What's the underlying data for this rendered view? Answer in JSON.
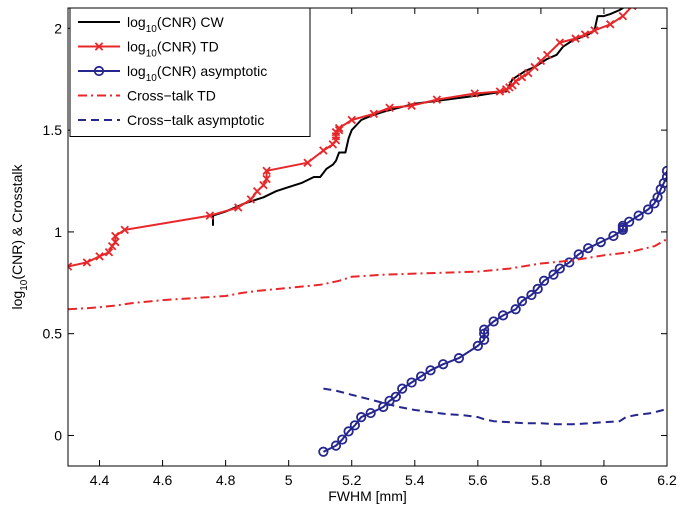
{
  "chart_data": {
    "type": "line",
    "xlabel": "FWHM [mm]",
    "ylabel": {
      "main": "log",
      "sub": "10",
      "rest": "(CNR) & Crosstalk"
    },
    "xlim": [
      4.3,
      6.2
    ],
    "ylim": [
      -0.15,
      2.1
    ],
    "xticks": [
      "4.4",
      "4.6",
      "4.8",
      "5",
      "5.2",
      "5.4",
      "5.6",
      "5.8",
      "6",
      "6.2"
    ],
    "yticks": [
      "0",
      "0.5",
      "1",
      "1.5",
      "2"
    ],
    "grid": false,
    "legend_position": "top-left",
    "series": [
      {
        "key": "cnr_cw",
        "legend": {
          "pre": "log",
          "sub": "10",
          "post": "(CNR) CW"
        },
        "color": "#000000",
        "style": "solid",
        "marker": "none",
        "x": [
          4.76,
          4.76,
          4.8,
          4.86,
          4.92,
          4.96,
          5.0,
          5.04,
          5.08,
          5.1,
          5.12,
          5.14,
          5.15,
          5.16,
          5.18,
          5.19,
          5.2,
          5.23,
          5.26,
          5.3,
          5.35,
          5.4,
          5.5,
          5.6,
          5.68,
          5.69,
          5.71,
          5.73,
          5.75,
          5.78,
          5.82,
          5.85,
          5.87,
          5.9,
          5.95,
          5.97,
          5.98,
          6.0,
          6.02,
          6.05,
          6.08
        ],
        "y": [
          1.03,
          1.08,
          1.1,
          1.14,
          1.17,
          1.2,
          1.22,
          1.24,
          1.27,
          1.27,
          1.31,
          1.33,
          1.35,
          1.39,
          1.39,
          1.46,
          1.5,
          1.55,
          1.57,
          1.59,
          1.61,
          1.63,
          1.65,
          1.67,
          1.69,
          1.69,
          1.75,
          1.77,
          1.79,
          1.81,
          1.85,
          1.87,
          1.91,
          1.94,
          1.97,
          1.99,
          2.06,
          2.06,
          2.07,
          2.09,
          2.12
        ]
      },
      {
        "key": "cnr_td",
        "legend": {
          "pre": "log",
          "sub": "10",
          "post": "(CNR) TD"
        },
        "color": "#e8272a",
        "style": "solid",
        "marker": "x",
        "x": [
          4.3,
          4.36,
          4.4,
          4.43,
          4.44,
          4.45,
          4.45,
          4.48,
          4.75,
          4.84,
          4.88,
          4.9,
          4.92,
          4.93,
          4.93,
          5.06,
          5.11,
          5.14,
          5.15,
          5.15,
          5.15,
          5.16,
          5.16,
          5.2,
          5.27,
          5.32,
          5.39,
          5.47,
          5.59,
          5.67,
          5.69,
          5.7,
          5.71,
          5.72,
          5.74,
          5.76,
          5.78,
          5.8,
          5.82,
          5.86,
          5.91,
          5.94,
          5.97,
          6.02,
          6.06,
          6.09
        ],
        "y": [
          0.83,
          0.85,
          0.88,
          0.9,
          0.93,
          0.95,
          0.98,
          1.01,
          1.08,
          1.12,
          1.16,
          1.2,
          1.23,
          1.26,
          1.3,
          1.34,
          1.4,
          1.43,
          1.45,
          1.47,
          1.49,
          1.5,
          1.51,
          1.55,
          1.58,
          1.61,
          1.62,
          1.65,
          1.68,
          1.69,
          1.7,
          1.71,
          1.72,
          1.74,
          1.76,
          1.78,
          1.81,
          1.84,
          1.87,
          1.93,
          1.95,
          1.97,
          1.99,
          2.02,
          2.06,
          2.11
        ]
      },
      {
        "key": "cnr_asym",
        "legend": {
          "pre": "log",
          "sub": "10",
          "post": "(CNR) asymptotic"
        },
        "color": "#26268f",
        "style": "solid",
        "marker": "o",
        "x": [
          5.11,
          5.15,
          5.17,
          5.19,
          5.21,
          5.23,
          5.26,
          5.3,
          5.32,
          5.34,
          5.36,
          5.39,
          5.42,
          5.45,
          5.49,
          5.54,
          5.6,
          5.62,
          5.62,
          5.62,
          5.65,
          5.68,
          5.72,
          5.74,
          5.77,
          5.79,
          5.81,
          5.84,
          5.86,
          5.89,
          5.92,
          5.95,
          5.99,
          6.03,
          6.06,
          6.06,
          6.06,
          6.08,
          6.11,
          6.14,
          6.16,
          6.17,
          6.18,
          6.19,
          6.2,
          6.2
        ],
        "y": [
          -0.08,
          -0.05,
          -0.02,
          0.02,
          0.05,
          0.09,
          0.11,
          0.14,
          0.17,
          0.19,
          0.23,
          0.26,
          0.29,
          0.32,
          0.35,
          0.38,
          0.44,
          0.47,
          0.5,
          0.52,
          0.56,
          0.59,
          0.62,
          0.66,
          0.69,
          0.72,
          0.76,
          0.79,
          0.82,
          0.85,
          0.89,
          0.92,
          0.95,
          0.98,
          1.01,
          1.02,
          1.03,
          1.05,
          1.08,
          1.11,
          1.14,
          1.17,
          1.21,
          1.24,
          1.27,
          1.3
        ]
      },
      {
        "key": "crosstalk_td",
        "legend": {
          "pre": "Cross−talk TD",
          "sub": "",
          "post": ""
        },
        "color": "#e8272a",
        "style": "dashdot",
        "marker": "none",
        "x": [
          4.3,
          4.36,
          4.4,
          4.46,
          4.5,
          4.6,
          4.7,
          4.8,
          4.85,
          4.9,
          5.0,
          5.1,
          5.16,
          5.2,
          5.3,
          5.4,
          5.5,
          5.6,
          5.7,
          5.8,
          5.9,
          6.0,
          6.08,
          6.12,
          6.16,
          6.2
        ],
        "y": [
          0.62,
          0.625,
          0.63,
          0.64,
          0.65,
          0.665,
          0.675,
          0.685,
          0.7,
          0.71,
          0.725,
          0.74,
          0.76,
          0.78,
          0.79,
          0.795,
          0.8,
          0.805,
          0.82,
          0.845,
          0.86,
          0.885,
          0.9,
          0.915,
          0.93,
          0.965
        ]
      },
      {
        "key": "crosstalk_asym",
        "legend": {
          "pre": "Cross−talk asymptotic",
          "sub": "",
          "post": ""
        },
        "color": "#26268f",
        "style": "dashed",
        "marker": "none",
        "x": [
          5.11,
          5.15,
          5.2,
          5.25,
          5.3,
          5.35,
          5.4,
          5.45,
          5.5,
          5.55,
          5.6,
          5.62,
          5.65,
          5.7,
          5.75,
          5.8,
          5.85,
          5.9,
          5.95,
          6.0,
          6.05,
          6.07,
          6.1,
          6.15,
          6.2
        ],
        "y": [
          0.23,
          0.22,
          0.2,
          0.18,
          0.16,
          0.14,
          0.125,
          0.115,
          0.105,
          0.1,
          0.09,
          0.08,
          0.07,
          0.065,
          0.06,
          0.06,
          0.055,
          0.055,
          0.06,
          0.065,
          0.07,
          0.09,
          0.1,
          0.11,
          0.13
        ]
      }
    ]
  }
}
